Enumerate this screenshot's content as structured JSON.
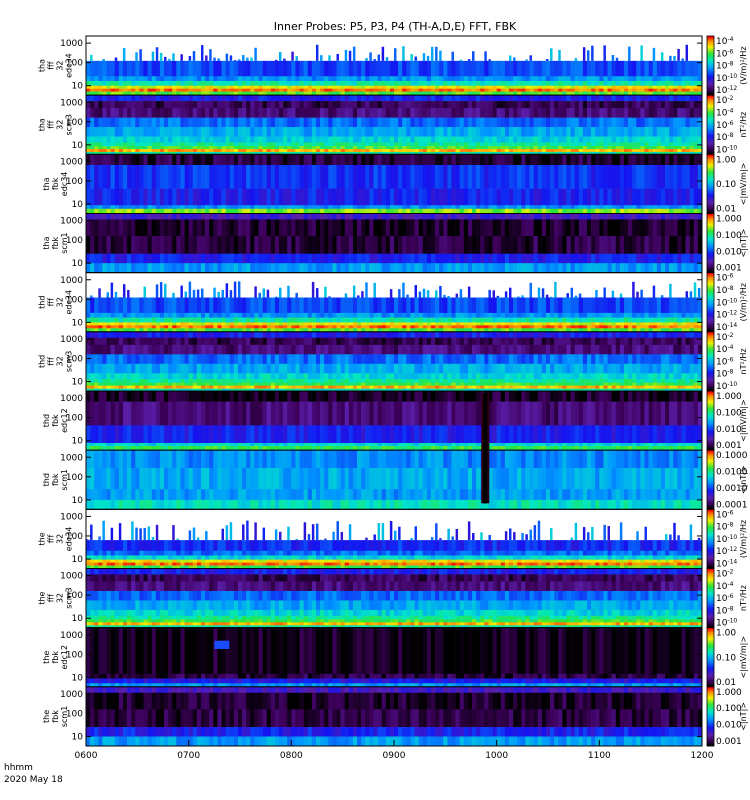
{
  "chart_data": {
    "type": "heatmap",
    "title": "Inner Probes: P5, P3, P4 (TH-A,D,E) FFT, FBK",
    "x_ticks": [
      "0600",
      "0700",
      "0800",
      "0900",
      "1000",
      "1100",
      "1200"
    ],
    "x_range": [
      "0600",
      "1200"
    ],
    "x_axis_label": "hhmm",
    "date_label": "2020 May 18",
    "y_scale": "log",
    "y_ticks": [
      "10",
      "100",
      "1000"
    ],
    "colormap": "rainbow",
    "panels": [
      {
        "label": [
          "tha",
          "fff",
          "32",
          "edc34"
        ],
        "kind": "fff_e",
        "colorbar_labels": [
          "10^-4",
          "10^-6",
          "10^-8",
          "10^-10",
          "10^-12"
        ],
        "unit": "(V/m)²/Hz"
      },
      {
        "label": [
          "tha",
          "fff",
          "32",
          "scm3"
        ],
        "kind": "fff_b",
        "colorbar_labels": [
          "10^-2",
          "10^-4",
          "10^-6",
          "10^-8",
          "10^-10"
        ],
        "unit": "nT²/Hz"
      },
      {
        "label": [
          "tha",
          "fbk",
          "edc34"
        ],
        "kind": "fbk_e",
        "colorbar_labels": [
          "1.00",
          "0.10",
          "0.01"
        ],
        "unit": "<|mV/m|>"
      },
      {
        "label": [
          "tha",
          "fbk",
          "scm1"
        ],
        "kind": "fbk_b",
        "colorbar_labels": [
          "1.000",
          "0.100",
          "0.010",
          "0.001"
        ],
        "unit": "<|nT|>"
      },
      {
        "label": [
          "thd",
          "fff",
          "32",
          "edc34"
        ],
        "kind": "fff_e",
        "colorbar_labels": [
          "10^-6",
          "10^-8",
          "10^-10",
          "10^-12",
          "10^-14"
        ],
        "unit": "(V/m)²/Hz"
      },
      {
        "label": [
          "thd",
          "fff",
          "32",
          "scm3"
        ],
        "kind": "fff_b",
        "colorbar_labels": [
          "10^-2",
          "10^-4",
          "10^-6",
          "10^-8",
          "10^-10"
        ],
        "unit": "nT²/Hz"
      },
      {
        "label": [
          "thd",
          "fbk",
          "edc12"
        ],
        "kind": "fbk_e_gap",
        "colorbar_labels": [
          "1.000",
          "0.100",
          "0.010",
          "0.001"
        ],
        "unit": "<|mV/m|>"
      },
      {
        "label": [
          "thd",
          "fbk",
          "scm1"
        ],
        "kind": "fbk_b_gap",
        "colorbar_labels": [
          "0.1000",
          "0.0100",
          "0.0010",
          "0.0001"
        ],
        "unit": "<|nT|>"
      },
      {
        "label": [
          "the",
          "fff",
          "32",
          "edc34"
        ],
        "kind": "fff_e_sparse",
        "colorbar_labels": [
          "10^-6",
          "10^-8",
          "10^-10",
          "10^-12",
          "10^-14"
        ],
        "unit": "(V/m)²/Hz"
      },
      {
        "label": [
          "the",
          "fff",
          "32",
          "scm3"
        ],
        "kind": "fff_b",
        "colorbar_labels": [
          "10^-2",
          "10^-4",
          "10^-6",
          "10^-8",
          "10^-10"
        ],
        "unit": "nT²/Hz"
      },
      {
        "label": [
          "the",
          "fbk",
          "edc12"
        ],
        "kind": "fbk_e_dark",
        "colorbar_labels": [
          "1.00",
          "0.10",
          "0.01"
        ],
        "unit": "<|mV/m|>"
      },
      {
        "label": [
          "the",
          "fbk",
          "scm1"
        ],
        "kind": "fbk_b",
        "colorbar_labels": [
          "1.000",
          "0.100",
          "0.010",
          "0.001"
        ],
        "unit": "<|nT|>"
      }
    ]
  }
}
